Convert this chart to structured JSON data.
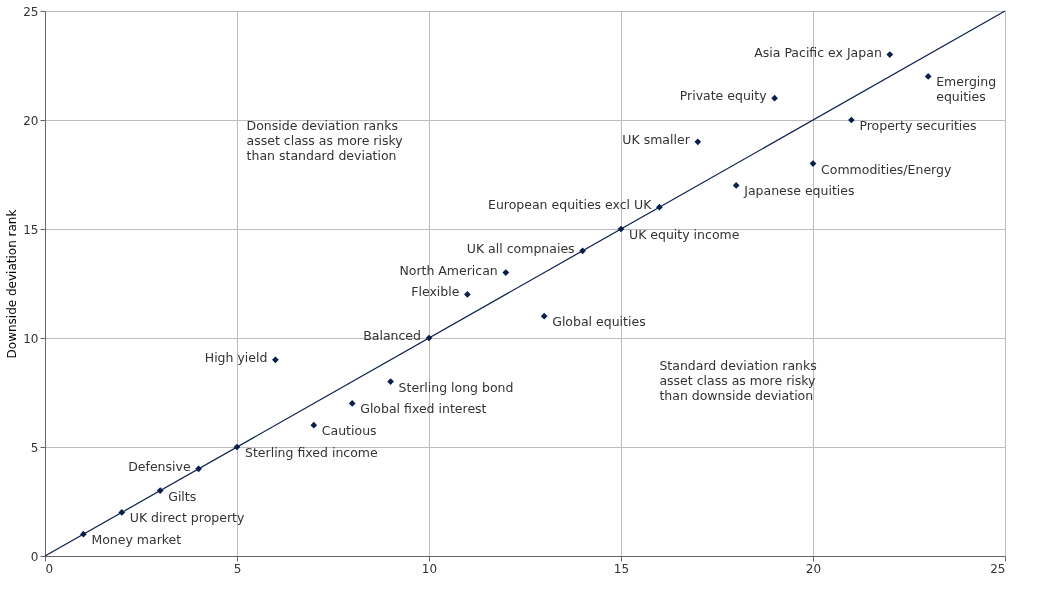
{
  "chart_data": {
    "type": "scatter",
    "ylabel": "Downside deviation rank",
    "xlim": [
      0,
      25
    ],
    "ylim": [
      0,
      25
    ],
    "xticks": [
      0,
      5,
      10,
      15,
      20,
      25
    ],
    "yticks": [
      0,
      5,
      10,
      15,
      20,
      25
    ],
    "grid": true,
    "marker": "diamond",
    "series": [
      {
        "color": "#0a1f4d",
        "x": [
          1,
          2,
          3,
          4,
          5,
          6,
          7,
          8,
          9,
          10,
          11,
          12,
          13,
          14,
          15,
          16,
          17,
          18,
          19,
          20,
          21,
          22,
          23
        ],
        "values": [
          1,
          2,
          3,
          4,
          5,
          9,
          6,
          7,
          8,
          10,
          12,
          13,
          11,
          14,
          15,
          16,
          19,
          17,
          21,
          18,
          20,
          23,
          22
        ]
      },
      {
        "type": "line",
        "marker": "none",
        "color": "#0a1f4d",
        "x": [
          0,
          25
        ],
        "values": [
          0,
          25
        ]
      }
    ],
    "annotations": [
      {
        "text": "Money market",
        "x": 1,
        "y": 1
      },
      {
        "text": "UK direct property",
        "x": 2,
        "y": 2
      },
      {
        "text": "Gilts",
        "x": 3,
        "y": 3
      },
      {
        "text": "Defensive",
        "x": 4,
        "y": 4
      },
      {
        "text": "Sterling fixed income",
        "x": 5,
        "y": 5
      },
      {
        "text": "High yield",
        "x": 6,
        "y": 9
      },
      {
        "text": "Cautious",
        "x": 7,
        "y": 6
      },
      {
        "text": "Global fixed interest",
        "x": 8,
        "y": 7
      },
      {
        "text": "Sterling long bond",
        "x": 9,
        "y": 8
      },
      {
        "text": "Balanced",
        "x": 10,
        "y": 10
      },
      {
        "text": "Flexible",
        "x": 11,
        "y": 12
      },
      {
        "text": "North American",
        "x": 12,
        "y": 13
      },
      {
        "text": "Global equities",
        "x": 13,
        "y": 11
      },
      {
        "text": "UK all compnaies",
        "x": 14,
        "y": 14
      },
      {
        "text": "UK equity income",
        "x": 15,
        "y": 15
      },
      {
        "text": "European equities excl UK",
        "x": 16,
        "y": 16
      },
      {
        "text": "UK smaller",
        "x": 17,
        "y": 19
      },
      {
        "text": "Japanese equities",
        "x": 18,
        "y": 17
      },
      {
        "text": "Private equity",
        "x": 19,
        "y": 21
      },
      {
        "text": "Commodities/Energy",
        "x": 20,
        "y": 18
      },
      {
        "text": "Property securities",
        "x": 21,
        "y": 20
      },
      {
        "text": "Asia Pacific ex Japan",
        "x": 22,
        "y": 23
      },
      {
        "text": "Emerging equities",
        "x": 23,
        "y": 22
      },
      "Donside deviation ranks asset class as more risky than standard deviation",
      "Standard deviation ranks asset class as more risky than downside deviation"
    ]
  }
}
